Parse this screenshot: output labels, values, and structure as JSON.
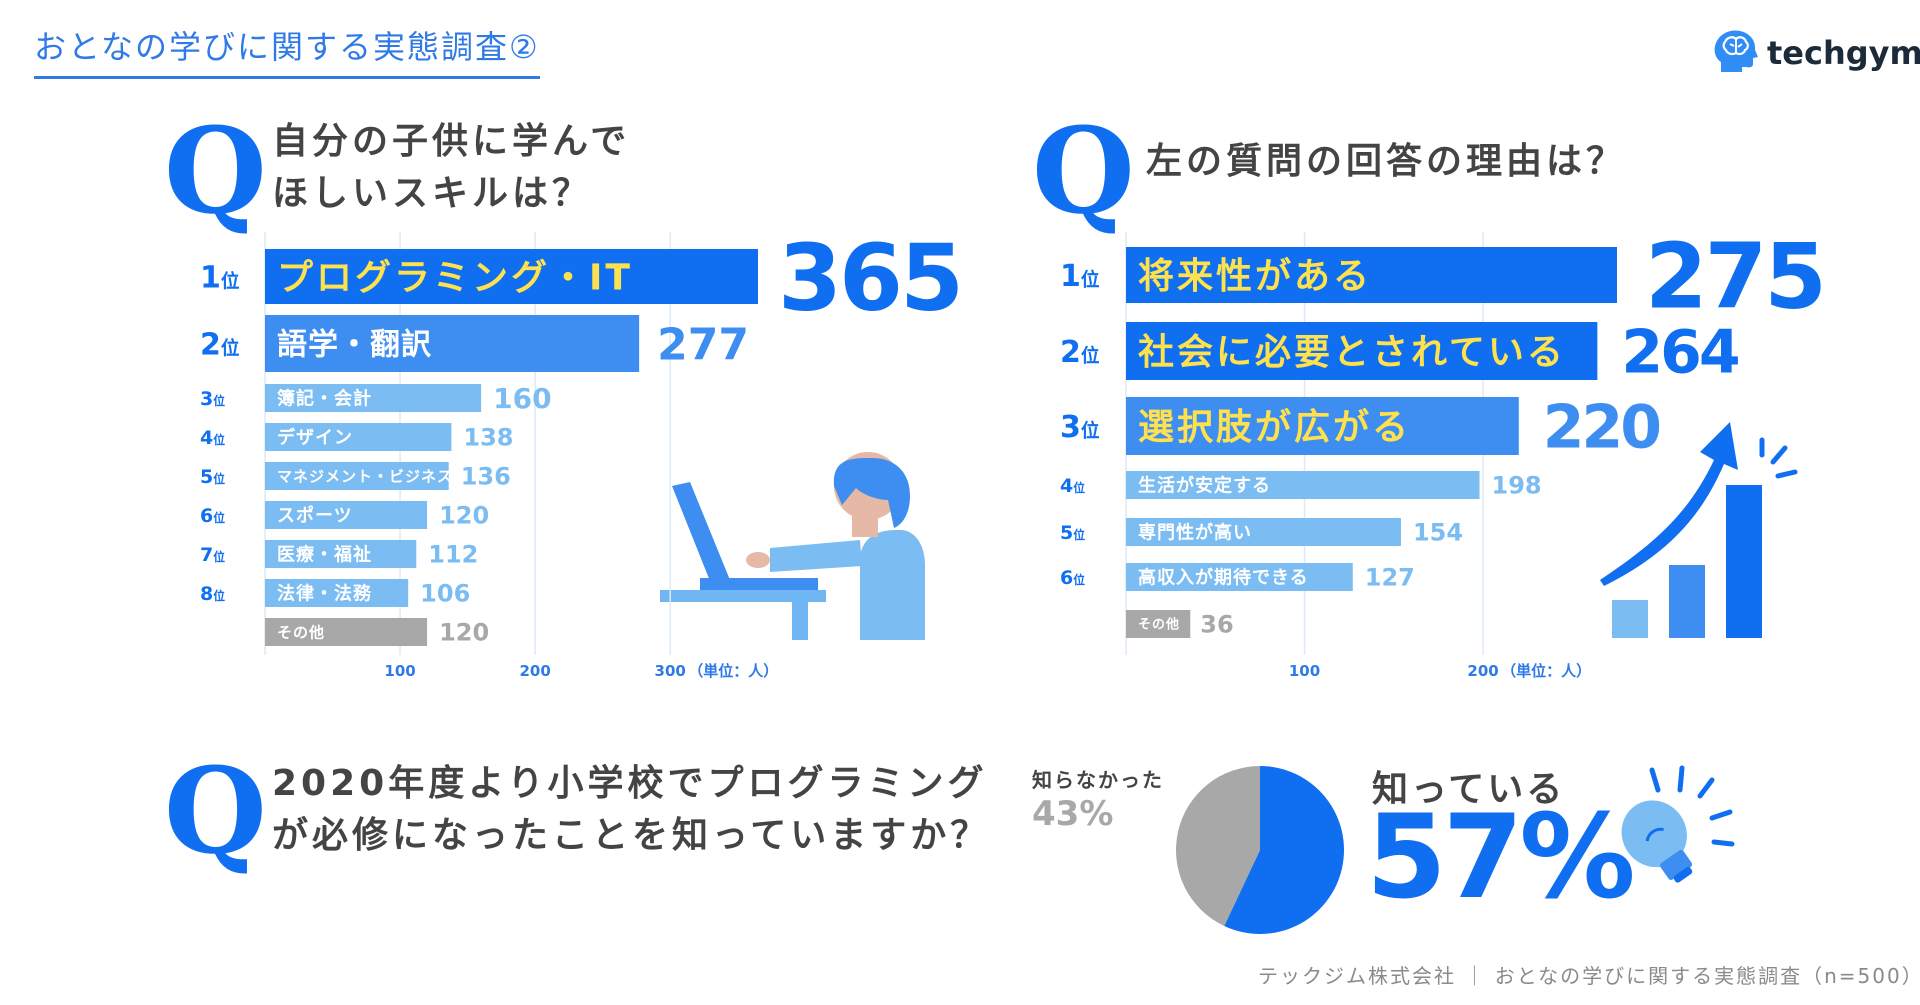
{
  "header": {
    "title": "おとなの学びに関する実態調査②",
    "brand": "techgym"
  },
  "questions": {
    "q1": {
      "mark": "Q",
      "line1": "自分の子供に学んで",
      "line2": "ほしいスキルは？"
    },
    "q2": {
      "mark": "Q",
      "line1": "左の質問の回答の理由は？"
    },
    "q3": {
      "mark": "Q",
      "line1": "2020年度より小学校でプログラミング",
      "line2": "が必修になったことを知っていますか？"
    }
  },
  "chart_data": [
    {
      "type": "bar",
      "orientation": "horizontal",
      "ranks": [
        "1位",
        "2位",
        "3位",
        "4位",
        "5位",
        "6位",
        "7位",
        "8位",
        ""
      ],
      "categories": [
        "プログラミング・IT",
        "語学・翻訳",
        "簿記・会計",
        "デザイン",
        "マネジメント・ビジネス",
        "スポーツ",
        "医療・福祉",
        "法律・法務",
        "その他"
      ],
      "values": [
        365,
        277,
        160,
        138,
        136,
        120,
        112,
        106,
        120
      ],
      "xticks": [
        "100",
        "200",
        "300"
      ],
      "unit": "（単位：人）",
      "xlim": [
        0,
        365
      ]
    },
    {
      "type": "bar",
      "orientation": "horizontal",
      "ranks": [
        "1位",
        "2位",
        "3位",
        "4位",
        "5位",
        "6位",
        ""
      ],
      "categories": [
        "将来性がある",
        "社会に必要とされている",
        "選択肢が広がる",
        "生活が安定する",
        "専門性が高い",
        "高収入が期待できる",
        "その他"
      ],
      "values": [
        275,
        264,
        220,
        198,
        154,
        127,
        36
      ],
      "xticks": [
        "100",
        "200"
      ],
      "unit": "（単位：人）",
      "xlim": [
        0,
        275
      ]
    },
    {
      "type": "pie",
      "categories": [
        "知っている",
        "知らなかった"
      ],
      "values": [
        57,
        43
      ],
      "labels": [
        "57%",
        "43%"
      ]
    }
  ],
  "pie_text": {
    "known_label": "知っている",
    "known_pct": "57%",
    "unknown_label": "知らなかった",
    "unknown_pct": "43%"
  },
  "colors": {
    "accent": "#0f6ff0",
    "mid": "#3d8ef0",
    "light": "#7bbcf2",
    "gray": "#a8a8a8",
    "highlight_text": "#ffe14d"
  },
  "icons": [
    "brain-head-icon",
    "child-laptop-illustration",
    "growth-arrow-illustration",
    "lightbulb-icon"
  ],
  "footer": "テックジム株式会社 ｜ おとなの学びに関する実態調査（n=500）"
}
